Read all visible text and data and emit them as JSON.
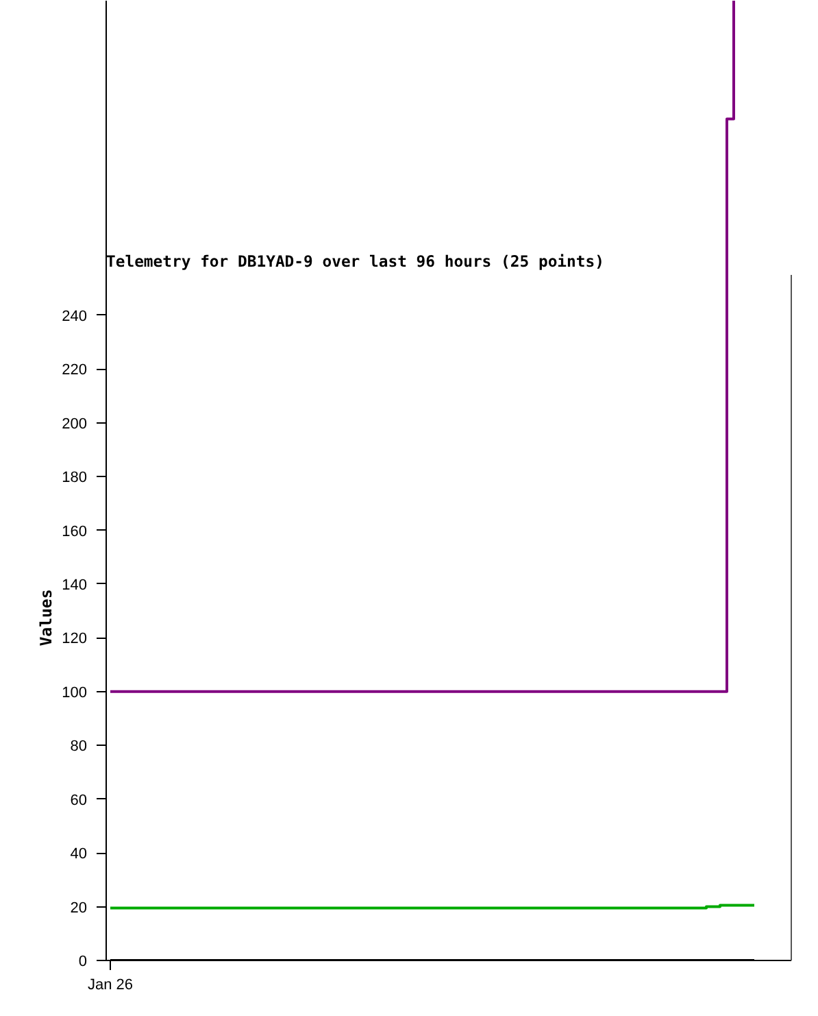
{
  "chart_data": {
    "type": "step",
    "title": "Telemetry for DB1YAD-9 over last 96 hours (25 points)",
    "ylabel": "Values",
    "categories": [
      "Jan 26",
      null,
      null,
      null,
      null,
      null,
      null,
      null,
      null,
      null,
      null,
      null,
      null,
      null,
      null,
      null,
      null,
      null,
      null,
      null,
      null,
      null,
      null,
      null,
      null,
      null,
      null,
      null,
      null,
      null,
      null,
      null,
      null,
      null,
      null,
      null,
      null,
      null,
      null,
      null,
      null,
      null,
      null,
      null,
      null,
      null,
      null,
      null,
      null,
      null,
      null,
      null,
      null,
      null,
      null,
      null,
      null,
      null,
      null,
      null,
      null,
      null,
      null,
      null,
      null,
      null,
      null,
      null,
      null,
      null,
      null,
      null,
      null,
      null,
      null,
      null,
      null,
      null,
      null,
      null,
      null,
      null,
      null,
      null,
      null,
      null,
      null,
      null,
      null,
      null,
      null,
      null,
      null,
      null,
      null
    ],
    "ylim": [
      0,
      357
    ],
    "yticks": [
      0,
      20,
      40,
      60,
      80,
      100,
      120,
      140,
      160,
      180,
      200,
      220,
      240
    ],
    "series": [
      {
        "color": "#800080",
        "values": [
          100,
          100,
          100,
          100,
          100,
          100,
          100,
          100,
          100,
          100,
          100,
          100,
          100,
          100,
          100,
          100,
          100,
          100,
          100,
          100,
          100,
          100,
          100,
          100,
          100,
          100,
          100,
          100,
          100,
          100,
          100,
          100,
          100,
          100,
          100,
          100,
          100,
          100,
          100,
          100,
          100,
          100,
          100,
          100,
          100,
          100,
          100,
          100,
          100,
          100,
          100,
          100,
          100,
          100,
          100,
          100,
          100,
          100,
          100,
          100,
          100,
          100,
          100,
          100,
          100,
          100,
          100,
          100,
          100,
          100,
          100,
          100,
          100,
          100,
          100,
          100,
          100,
          100,
          100,
          100,
          100,
          100,
          100,
          100,
          100,
          100,
          100,
          100,
          100,
          100,
          313,
          357,
          null,
          null,
          null
        ]
      },
      {
        "color": "#00aa00",
        "values": [
          19.5,
          19.5,
          19.5,
          19.5,
          19.5,
          19.5,
          19.5,
          19.5,
          19.5,
          19.5,
          19.5,
          19.5,
          19.5,
          19.5,
          19.5,
          19.5,
          19.5,
          19.5,
          19.5,
          19.5,
          19.5,
          19.5,
          19.5,
          19.5,
          19.5,
          19.5,
          19.5,
          19.5,
          19.5,
          19.5,
          19.5,
          19.5,
          19.5,
          19.5,
          19.5,
          19.5,
          19.5,
          19.5,
          19.5,
          19.5,
          19.5,
          19.5,
          19.5,
          19.5,
          19.5,
          19.5,
          19.5,
          19.5,
          19.5,
          19.5,
          19.5,
          19.5,
          19.5,
          19.5,
          19.5,
          19.5,
          19.5,
          19.5,
          19.5,
          19.5,
          19.5,
          19.5,
          19.5,
          19.5,
          19.5,
          19.5,
          19.5,
          19.5,
          19.5,
          19.5,
          19.5,
          19.5,
          19.5,
          19.5,
          19.5,
          19.5,
          19.5,
          19.5,
          19.5,
          19.5,
          19.5,
          19.5,
          19.5,
          19.5,
          19.5,
          19.5,
          19.5,
          20,
          20,
          20.5,
          20.5,
          20.5,
          20.5,
          20.5,
          20.5
        ]
      },
      {
        "color": "#000000",
        "values": [
          0,
          0,
          0,
          0,
          0,
          0,
          0,
          0,
          0,
          0,
          0,
          0,
          0,
          0,
          0,
          0,
          0,
          0,
          0,
          0,
          0,
          0,
          0,
          0,
          0,
          0,
          0,
          0,
          0,
          0,
          0,
          0,
          0,
          0,
          0,
          0,
          0,
          0,
          0,
          0,
          0,
          0,
          0,
          0,
          0,
          0,
          0,
          0,
          0,
          0,
          0,
          0,
          0,
          0,
          0,
          0,
          0,
          0,
          0,
          0,
          0,
          0,
          0,
          0,
          0,
          0,
          0,
          0,
          0,
          0,
          0,
          0,
          0,
          0,
          0,
          0,
          0,
          0,
          0,
          0,
          0,
          0,
          0,
          0,
          0,
          0,
          0,
          0,
          0,
          0,
          0,
          0,
          0,
          0,
          0
        ]
      }
    ]
  }
}
